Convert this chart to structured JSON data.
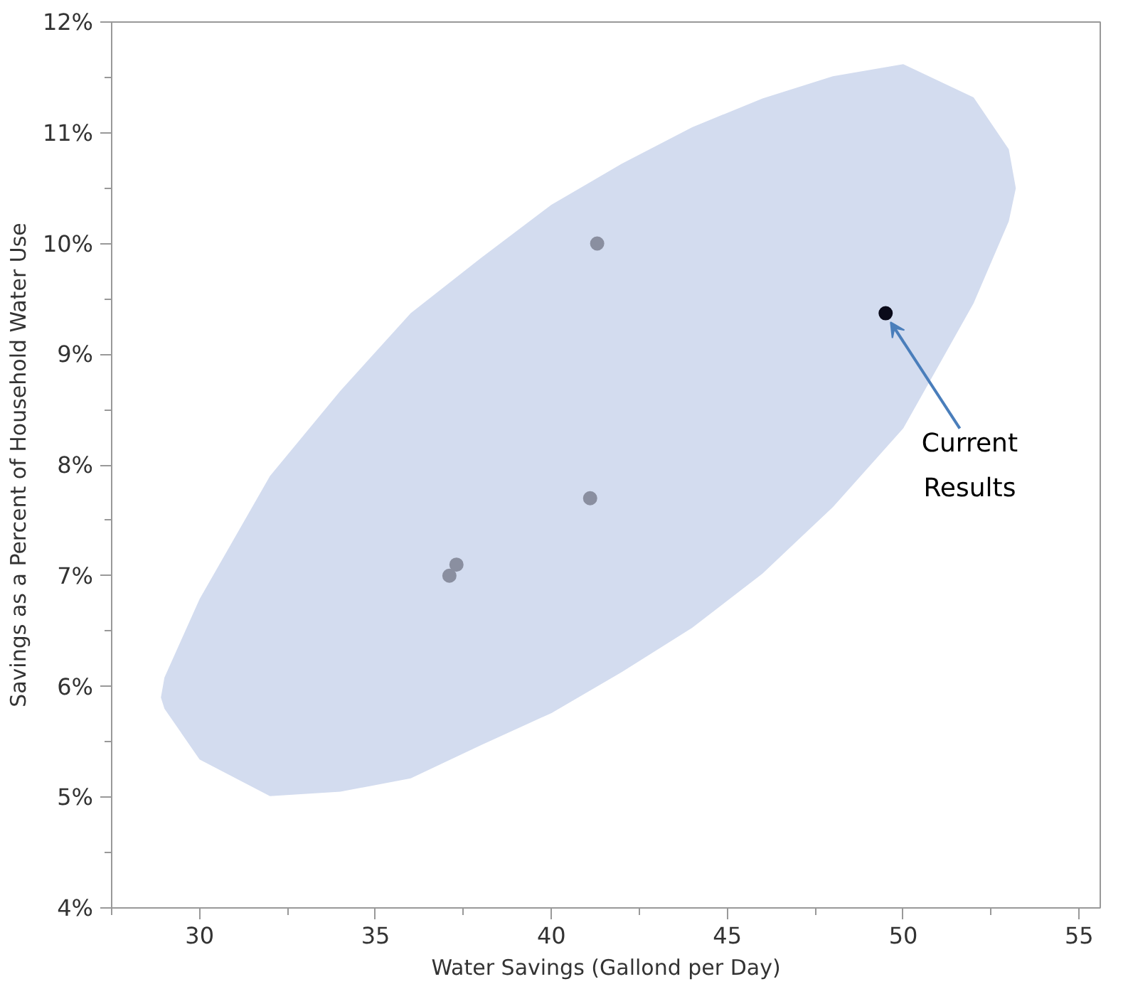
{
  "chart_data": {
    "type": "scatter",
    "xlabel": "Water Savings (Gallond per Day)",
    "ylabel": "Savings as a Percent of Household Water Use",
    "xlim": [
      27.5,
      55.6
    ],
    "ylim": [
      4,
      12
    ],
    "xticks": [
      30,
      35,
      40,
      45,
      50,
      55
    ],
    "yticks": [
      {
        "value": 4,
        "label": "4%"
      },
      {
        "value": 5,
        "label": "5%"
      },
      {
        "value": 6,
        "label": "6%"
      },
      {
        "value": 7,
        "label": "7%"
      },
      {
        "value": 8,
        "label": "8%"
      },
      {
        "value": 9,
        "label": "9%"
      },
      {
        "value": 10,
        "label": "10%"
      },
      {
        "value": 11,
        "label": "11%"
      },
      {
        "value": 12,
        "label": "12%"
      }
    ],
    "grid": false,
    "marker": "circle",
    "series": [
      {
        "type": "area",
        "marker": "none",
        "color": "#d3dcef",
        "x": [
          28.9,
          29,
          30,
          32,
          34,
          36,
          38,
          40,
          42,
          44,
          46,
          48,
          50,
          52,
          53,
          53.2,
          53,
          52,
          50,
          48,
          46,
          44,
          42,
          40,
          38,
          36,
          34,
          32,
          30,
          29
        ],
        "values": [
          5.9,
          6.08,
          6.79,
          7.9,
          8.67,
          9.37,
          9.87,
          10.35,
          10.72,
          11.05,
          11.31,
          11.51,
          11.62,
          11.32,
          10.85,
          10.5,
          10.2,
          9.46,
          8.33,
          7.62,
          7.02,
          6.53,
          6.13,
          5.76,
          5.47,
          5.17,
          5.05,
          5.01,
          5.34,
          5.8
        ]
      },
      {
        "color": "#8a8fa0",
        "x": [
          37.1,
          37.3,
          41.1,
          41.3
        ],
        "values": [
          7.0,
          7.1,
          7.7,
          10.0
        ]
      },
      {
        "color": "#0a0a1a",
        "x": [
          49.5
        ],
        "values": [
          9.37
        ]
      }
    ],
    "annotations": [
      {
        "text": "Current\nResults",
        "x": 49.5,
        "y": 9.37
      }
    ]
  }
}
